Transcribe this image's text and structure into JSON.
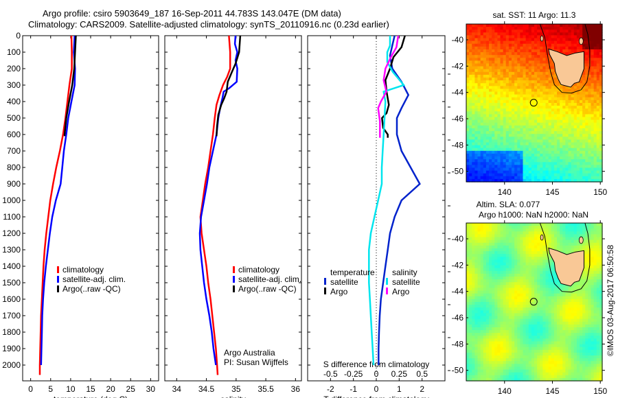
{
  "titles": {
    "line1": "Argo profile: csiro 5903649_187 16-Sep-2011 44.783S 143.047E (DM data)",
    "line2": "Climatology: CARS2009. Satellite-adjusted climatology: synTS_20110916.nc (0.23d earlier)"
  },
  "colors": {
    "climatology": "#ff0000",
    "satellite_adj": "#0000ff",
    "argo": "#000000",
    "t_satellite": "#0022cc",
    "s_satellite": "#00e5ee",
    "s_argo": "#ff00ff",
    "land": "#f9c896"
  },
  "annotation": {
    "line1": "Argo Australia",
    "line2": "PI: Susan Wijffels"
  },
  "copyright": "©IMOS 03-Aug-2017 06:50:58",
  "chart_data": [
    {
      "id": "temperature",
      "type": "line",
      "xlabel": "temperature (deg C)",
      "ylabel": "",
      "xlim": [
        -2,
        32
      ],
      "ylim": [
        2060,
        0
      ],
      "xticks": [
        0,
        5,
        10,
        15,
        20,
        25,
        30
      ],
      "yticks": [
        0,
        100,
        200,
        300,
        400,
        500,
        600,
        700,
        800,
        900,
        1000,
        1100,
        1200,
        1300,
        1400,
        1500,
        1600,
        1700,
        1800,
        1900,
        2000
      ],
      "legend": {
        "placement": "center-left",
        "entries": [
          "climatology",
          "satellite-adj. clim.",
          "Argo(..raw -QC)"
        ]
      },
      "series": [
        {
          "name": "climatology",
          "color_key": "climatology",
          "points": [
            [
              10.2,
              0
            ],
            [
              10.3,
              100
            ],
            [
              10.3,
              200
            ],
            [
              9.7,
              300
            ],
            [
              9.2,
              400
            ],
            [
              8.7,
              500
            ],
            [
              8.1,
              600
            ],
            [
              7.3,
              700
            ],
            [
              6.4,
              800
            ],
            [
              5.6,
              900
            ],
            [
              4.9,
              1000
            ],
            [
              4.4,
              1100
            ],
            [
              3.9,
              1200
            ],
            [
              3.5,
              1300
            ],
            [
              3.2,
              1400
            ],
            [
              3.0,
              1500
            ],
            [
              2.8,
              1600
            ],
            [
              2.6,
              1700
            ],
            [
              2.5,
              1800
            ],
            [
              2.4,
              1900
            ],
            [
              2.3,
              2000
            ],
            [
              2.3,
              2060
            ]
          ]
        },
        {
          "name": "satellite-adj. clim.",
          "color_key": "satellite_adj",
          "points": [
            [
              11.0,
              0
            ],
            [
              10.8,
              100
            ],
            [
              11.1,
              200
            ],
            [
              11.0,
              300
            ],
            [
              10.2,
              400
            ],
            [
              9.4,
              500
            ],
            [
              8.9,
              600
            ],
            [
              8.3,
              700
            ],
            [
              7.9,
              800
            ],
            [
              7.5,
              900
            ],
            [
              6.3,
              1000
            ],
            [
              5.4,
              1100
            ],
            [
              4.8,
              1200
            ],
            [
              4.3,
              1300
            ],
            [
              3.8,
              1400
            ],
            [
              3.4,
              1500
            ],
            [
              3.1,
              1600
            ],
            [
              2.9,
              1700
            ],
            [
              2.8,
              1800
            ],
            [
              2.7,
              1900
            ],
            [
              2.6,
              2000
            ]
          ]
        },
        {
          "name": "Argo(..raw -QC)",
          "color_key": "argo",
          "points": [
            [
              11.3,
              0
            ],
            [
              11.1,
              100
            ],
            [
              10.9,
              200
            ],
            [
              10.4,
              300
            ],
            [
              9.6,
              400
            ],
            [
              8.9,
              500
            ],
            [
              8.5,
              600
            ],
            [
              8.5,
              610
            ]
          ]
        }
      ]
    },
    {
      "id": "salinity",
      "type": "line",
      "xlabel": "salinity",
      "xlim": [
        33.8,
        36.1
      ],
      "ylim": [
        2060,
        0
      ],
      "xticks": [
        34,
        34.5,
        35,
        35.5,
        36
      ],
      "legend": {
        "placement": "center-right",
        "entries": [
          "climatology",
          "satellite-adj. clim.",
          "Argo(..raw -QC)"
        ]
      },
      "series": [
        {
          "name": "climatology",
          "color_key": "climatology",
          "points": [
            [
              34.88,
              0
            ],
            [
              34.9,
              100
            ],
            [
              34.9,
              200
            ],
            [
              34.85,
              250
            ],
            [
              34.78,
              300
            ],
            [
              34.72,
              360
            ],
            [
              34.67,
              420
            ],
            [
              34.64,
              500
            ],
            [
              34.61,
              600
            ],
            [
              34.57,
              700
            ],
            [
              34.53,
              800
            ],
            [
              34.48,
              900
            ],
            [
              34.44,
              1000
            ],
            [
              34.4,
              1100
            ],
            [
              34.42,
              1200
            ],
            [
              34.46,
              1300
            ],
            [
              34.5,
              1400
            ],
            [
              34.53,
              1500
            ],
            [
              34.57,
              1600
            ],
            [
              34.6,
              1700
            ],
            [
              34.63,
              1800
            ],
            [
              34.66,
              1900
            ],
            [
              34.68,
              2000
            ],
            [
              34.69,
              2060
            ]
          ]
        },
        {
          "name": "satellite-adj. clim.",
          "color_key": "satellite_adj",
          "points": [
            [
              34.99,
              0
            ],
            [
              34.98,
              50
            ],
            [
              35.02,
              100
            ],
            [
              34.99,
              150
            ],
            [
              35.02,
              200
            ],
            [
              35.01,
              280
            ],
            [
              34.88,
              320
            ],
            [
              34.79,
              340
            ],
            [
              34.77,
              380
            ],
            [
              34.73,
              440
            ],
            [
              34.7,
              500
            ],
            [
              34.67,
              600
            ],
            [
              34.61,
              700
            ],
            [
              34.55,
              800
            ],
            [
              34.51,
              900
            ],
            [
              34.46,
              1000
            ],
            [
              34.41,
              1100
            ],
            [
              34.39,
              1200
            ],
            [
              34.4,
              1300
            ],
            [
              34.43,
              1400
            ],
            [
              34.46,
              1500
            ],
            [
              34.5,
              1600
            ],
            [
              34.55,
              1700
            ],
            [
              34.59,
              1800
            ],
            [
              34.62,
              1900
            ],
            [
              34.66,
              2000
            ]
          ]
        },
        {
          "name": "Argo(..raw -QC)",
          "color_key": "argo",
          "points": [
            [
              35.07,
              0
            ],
            [
              35.05,
              100
            ],
            [
              34.99,
              170
            ],
            [
              34.93,
              220
            ],
            [
              34.86,
              280
            ],
            [
              34.84,
              340
            ],
            [
              34.8,
              380
            ],
            [
              34.75,
              420
            ],
            [
              34.7,
              480
            ],
            [
              34.68,
              550
            ],
            [
              34.67,
              610
            ]
          ]
        }
      ]
    },
    {
      "id": "difference",
      "type": "line",
      "xlabel": "T difference from climatology",
      "xlabel_secondary": "S difference from climatology",
      "xlim": [
        -3,
        3
      ],
      "ylim": [
        2060,
        0
      ],
      "xticks": [
        -2,
        -1,
        0,
        1,
        2
      ],
      "xticks_secondary": [
        -0.5,
        -0.25,
        0,
        0.25,
        0.5
      ],
      "xticks_secondary_labels": [
        "-0.5",
        "-0.25",
        "0",
        "0.25",
        "0.5"
      ],
      "legend": {
        "placement": "center",
        "groups": [
          {
            "title": "temperature",
            "entries": [
              "satellite",
              "Argo"
            ]
          },
          {
            "title": "salinity",
            "entries": [
              "satellite",
              "Argo"
            ]
          }
        ]
      },
      "series": [
        {
          "name": "temperature satellite",
          "color_key": "t_satellite",
          "points": [
            [
              0.8,
              0
            ],
            [
              0.7,
              60
            ],
            [
              0.6,
              120
            ],
            [
              0.7,
              200
            ],
            [
              1.1,
              280
            ],
            [
              1.4,
              360
            ],
            [
              1.1,
              440
            ],
            [
              0.9,
              500
            ],
            [
              0.9,
              600
            ],
            [
              1.1,
              700
            ],
            [
              1.5,
              800
            ],
            [
              1.9,
              900
            ],
            [
              1.1,
              1000
            ],
            [
              0.8,
              1100
            ],
            [
              0.6,
              1200
            ],
            [
              0.5,
              1300
            ],
            [
              0.4,
              1400
            ],
            [
              0.3,
              1500
            ],
            [
              0.2,
              1600
            ],
            [
              0.15,
              1700
            ],
            [
              0.12,
              1800
            ],
            [
              0.1,
              1900
            ],
            [
              0.1,
              2000
            ]
          ]
        },
        {
          "name": "temperature Argo",
          "color_key": "argo",
          "points": [
            [
              1.25,
              0
            ],
            [
              1.1,
              70
            ],
            [
              0.75,
              130
            ],
            [
              0.6,
              200
            ],
            [
              0.4,
              270
            ],
            [
              0.45,
              340
            ],
            [
              0.55,
              420
            ],
            [
              0.45,
              470
            ],
            [
              0.25,
              500
            ],
            [
              0.3,
              560
            ],
            [
              0.5,
              600
            ],
            [
              0.5,
              620
            ]
          ]
        },
        {
          "name": "salinity satellite",
          "color_key": "s_satellite",
          "points": [
            [
              0.15,
              0
            ],
            [
              0.15,
              60
            ],
            [
              0.12,
              100
            ],
            [
              0.12,
              160
            ],
            [
              0.18,
              220
            ],
            [
              0.3,
              300
            ],
            [
              0.08,
              340
            ],
            [
              0.1,
              400
            ],
            [
              0.09,
              500
            ],
            [
              0.08,
              600
            ],
            [
              0.07,
              700
            ],
            [
              0.06,
              800
            ],
            [
              0.06,
              900
            ],
            [
              0.02,
              1000
            ],
            [
              -0.02,
              1100
            ],
            [
              -0.06,
              1200
            ],
            [
              -0.08,
              1300
            ],
            [
              -0.08,
              1400
            ],
            [
              -0.08,
              1500
            ],
            [
              -0.07,
              1600
            ],
            [
              -0.06,
              1700
            ],
            [
              -0.05,
              1800
            ],
            [
              -0.04,
              1900
            ],
            [
              -0.03,
              2000
            ]
          ]
        },
        {
          "name": "salinity Argo",
          "color_key": "s_argo",
          "points": [
            [
              0.24,
              0
            ],
            [
              0.22,
              70
            ],
            [
              0.16,
              130
            ],
            [
              0.1,
              200
            ],
            [
              0.08,
              270
            ],
            [
              0.11,
              340
            ],
            [
              0.05,
              400
            ],
            [
              0.02,
              440
            ],
            [
              0.04,
              520
            ],
            [
              0.04,
              620
            ]
          ]
        }
      ],
      "zero_line": true
    },
    {
      "id": "sst-map",
      "type": "heatmap",
      "title": "sat. SST: 11 Argo: 11.3",
      "xlim": [
        136,
        150.2
      ],
      "ylim": [
        -50.8,
        -38.8
      ],
      "xticks": [
        140,
        145,
        150
      ],
      "yticks": [
        -40,
        -42,
        -44,
        -46,
        -48,
        -50
      ],
      "marker": {
        "lon": 143.047,
        "lat": -44.783
      }
    },
    {
      "id": "sla-map",
      "type": "heatmap",
      "title": "Altim. SLA: 0.077",
      "subtitle": "Argo h1000: NaN h2000: NaN",
      "xlim": [
        136,
        150.2
      ],
      "ylim": [
        -50.8,
        -38.8
      ],
      "xticks": [
        140,
        145,
        150
      ],
      "yticks": [
        -40,
        -42,
        -44,
        -46,
        -48,
        -50
      ],
      "marker": {
        "lon": 143.047,
        "lat": -44.783
      }
    }
  ]
}
